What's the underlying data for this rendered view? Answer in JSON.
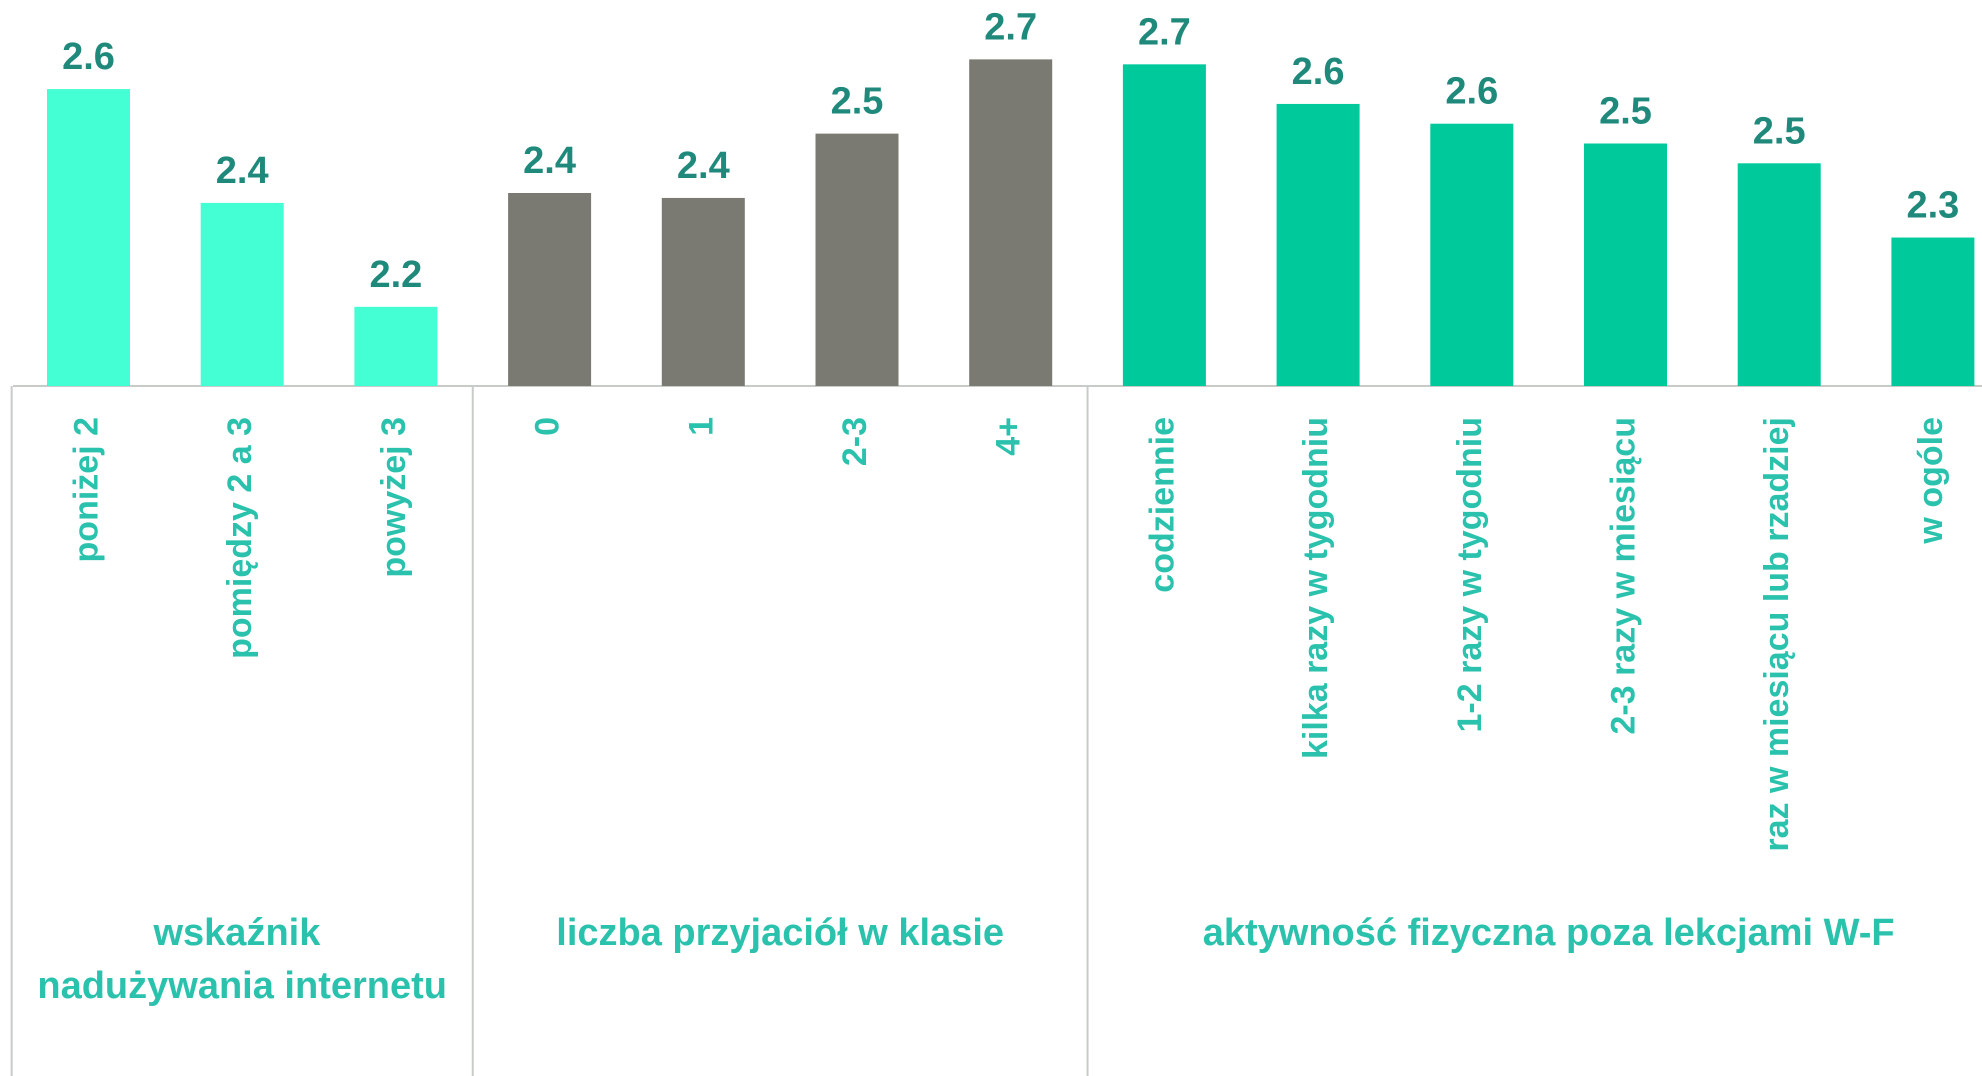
{
  "chart_data": {
    "type": "bar",
    "ylim": [
      2.04,
      2.82
    ],
    "groups": [
      {
        "name": "wskaźnik nadużywania internetu",
        "color": "#44ffd4",
        "categories": [
          "poniżej 2",
          "pomiędzy 2 a 3",
          "powyżej 3"
        ],
        "values": [
          2.64,
          2.41,
          2.2
        ],
        "value_labels": [
          "2.6",
          "2.4",
          "2.2"
        ]
      },
      {
        "name": "liczba przyjaciół w klasie",
        "color": "#7a7a72",
        "categories": [
          "0",
          "1",
          "2-3",
          "4+"
        ],
        "values": [
          2.43,
          2.42,
          2.55,
          2.7
        ],
        "value_labels": [
          "2.4",
          "2.4",
          "2.5",
          "2.7"
        ]
      },
      {
        "name": "aktywność fizyczna poza lekcjami W-F",
        "color": "#00c99c",
        "categories": [
          "codziennie",
          "kilka razy w tygodniu",
          "1-2 razy w tygodniu",
          "2-3 razy w miesiącu",
          "raz w miesiącu lub rzadziej",
          "w ogóle"
        ],
        "values": [
          2.69,
          2.61,
          2.57,
          2.53,
          2.49,
          2.34
        ],
        "value_labels": [
          "2.7",
          "2.6",
          "2.6",
          "2.5",
          "2.5",
          "2.3"
        ]
      }
    ]
  }
}
